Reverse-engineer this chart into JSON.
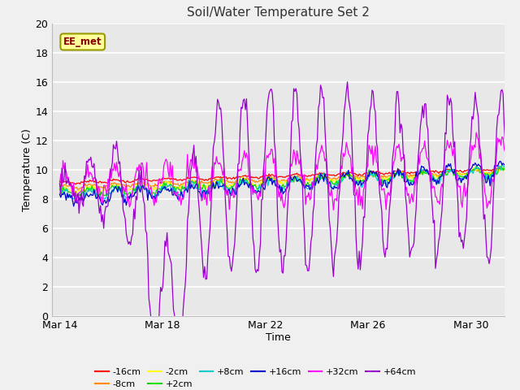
{
  "title": "Soil/Water Temperature Set 2",
  "xlabel": "Time",
  "ylabel": "Temperature (C)",
  "ylim": [
    0,
    20
  ],
  "yticks": [
    0,
    2,
    4,
    6,
    8,
    10,
    12,
    14,
    16,
    18,
    20
  ],
  "label_box_text": "EE_met",
  "label_box_color": "#ffff99",
  "label_box_border": "#999900",
  "plot_bg_color": "#e8e8e8",
  "fig_bg_color": "#f0f0f0",
  "series": [
    {
      "label": "-16cm",
      "color": "#ff0000",
      "base": 9.1,
      "amp": 0.08,
      "trend": 0.055,
      "noise": 0.04
    },
    {
      "label": "-8cm",
      "color": "#ff8800",
      "base": 8.8,
      "amp": 0.12,
      "trend": 0.065,
      "noise": 0.06
    },
    {
      "label": "-2cm",
      "color": "#ffff00",
      "base": 8.6,
      "amp": 0.18,
      "trend": 0.075,
      "noise": 0.09
    },
    {
      "label": "+2cm",
      "color": "#00dd00",
      "base": 8.4,
      "amp": 0.25,
      "trend": 0.085,
      "noise": 0.11
    },
    {
      "label": "+8cm",
      "color": "#00cccc",
      "base": 8.2,
      "amp": 0.35,
      "trend": 0.095,
      "noise": 0.13
    },
    {
      "label": "+16cm",
      "color": "#0000cc",
      "base": 8.0,
      "amp": 0.55,
      "trend": 0.11,
      "noise": 0.18
    },
    {
      "label": "+32cm",
      "color": "#ff00ff",
      "base": 9.0,
      "amp": 2.2,
      "trend": 0.06,
      "noise": 0.4
    },
    {
      "label": "+64cm",
      "color": "#9900cc",
      "base": 9.0,
      "amp": 5.5,
      "trend": 0.04,
      "noise": 0.5
    }
  ],
  "xtick_labels": [
    "Mar 14",
    "Mar 18",
    "Mar 22",
    "Mar 26",
    "Mar 30"
  ],
  "xtick_positions": [
    0,
    4,
    8,
    12,
    16
  ]
}
